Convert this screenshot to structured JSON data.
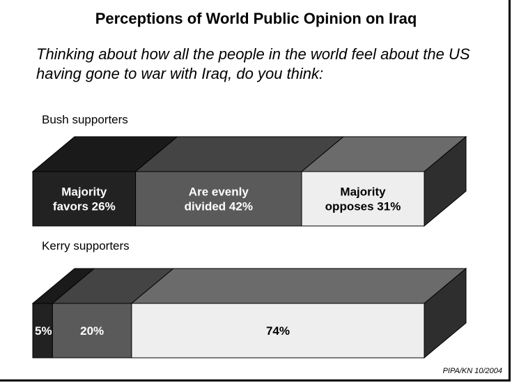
{
  "title": "Perceptions of World Public Opinion on Iraq",
  "subtitle": "Thinking about how all the people in the world feel about the US having gone to war with Iraq, do you think:",
  "source": "PIPA/KN 10/2004",
  "chart_data": {
    "type": "bar",
    "stacked": true,
    "orientation": "horizontal",
    "three_d": true,
    "categories": [
      "Bush supporters",
      "Kerry supporters"
    ],
    "series": [
      {
        "name": "Majority favors",
        "values": [
          26,
          5
        ],
        "color": "#222222"
      },
      {
        "name": "Are evenly divided",
        "values": [
          42,
          20
        ],
        "color": "#5a5a5a"
      },
      {
        "name": "Majority opposes",
        "values": [
          31,
          74
        ],
        "color": "#eeeeee"
      }
    ],
    "bar_labels": [
      [
        "Majority\nfavors 26%",
        "Are evenly\ndivided 42%",
        "Majority\nopposes 31%"
      ],
      [
        "5%",
        "20%",
        "74%"
      ]
    ],
    "unit": "%"
  }
}
